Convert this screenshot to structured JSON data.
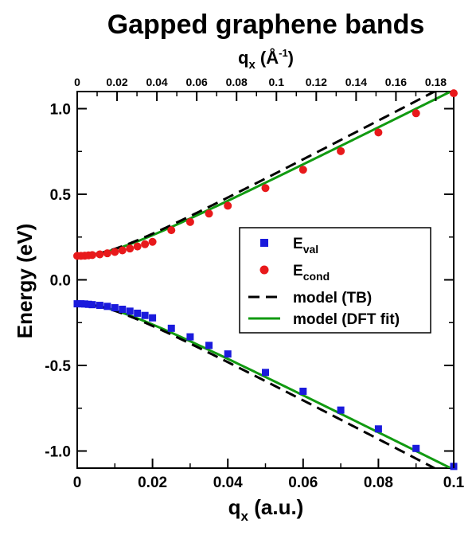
{
  "chart_data": {
    "type": "scatter",
    "title": "Gapped graphene bands",
    "xlabel": "q",
    "xlabel_sub": "x",
    "xlabel_unit": " (a.u.)",
    "x2label": "q",
    "x2label_sub": "x",
    "x2label_unit_pre": " (Å",
    "x2label_unit_sup": "-1",
    "x2label_unit_post": ")",
    "ylabel": "Energy (eV)",
    "xlim": [
      0,
      0.1
    ],
    "ylim": [
      -1.1,
      1.1
    ],
    "x2lim": [
      0,
      0.189
    ],
    "x_ticks": [
      {
        "value": 0,
        "label": "0"
      },
      {
        "value": 0.02,
        "label": "0.02"
      },
      {
        "value": 0.04,
        "label": "0.04"
      },
      {
        "value": 0.06,
        "label": "0.06"
      },
      {
        "value": 0.08,
        "label": "0.08"
      },
      {
        "value": 0.1,
        "label": "0.1"
      }
    ],
    "y_ticks": [
      {
        "value": -1.0,
        "label": "-1.0"
      },
      {
        "value": -0.5,
        "label": "-0.5"
      },
      {
        "value": 0.0,
        "label": "0.0"
      },
      {
        "value": 0.5,
        "label": "0.5"
      },
      {
        "value": 1.0,
        "label": "1.0"
      }
    ],
    "x2_ticks": [
      {
        "value": 0,
        "label": "0"
      },
      {
        "value": 0.02,
        "label": "0.02"
      },
      {
        "value": 0.04,
        "label": "0.04"
      },
      {
        "value": 0.06,
        "label": "0.06"
      },
      {
        "value": 0.08,
        "label": "0.08"
      },
      {
        "value": 0.1,
        "label": "0.1"
      },
      {
        "value": 0.12,
        "label": "0.12"
      },
      {
        "value": 0.14,
        "label": "0.14"
      },
      {
        "value": 0.16,
        "label": "0.16"
      },
      {
        "value": 0.18,
        "label": "0.18"
      }
    ],
    "legend_position": "right-middle",
    "grid": false,
    "series": [
      {
        "name": "E",
        "name_sub": "val",
        "kind": "markers",
        "marker": "square",
        "color": "#1a1adc",
        "x": [
          0,
          0.001,
          0.002,
          0.003,
          0.004,
          0.006,
          0.008,
          0.01,
          0.012,
          0.014,
          0.016,
          0.018,
          0.02,
          0.025,
          0.03,
          0.035,
          0.04,
          0.05,
          0.06,
          0.07,
          0.08,
          0.09,
          0.1
        ],
        "y": [
          -0.14,
          -0.14,
          -0.141,
          -0.143,
          -0.145,
          -0.149,
          -0.155,
          -0.163,
          -0.172,
          -0.183,
          -0.195,
          -0.208,
          -0.222,
          -0.283,
          -0.333,
          -0.383,
          -0.433,
          -0.541,
          -0.651,
          -0.761,
          -0.871,
          -0.985,
          -1.09
        ]
      },
      {
        "name": "E",
        "name_sub": "cond",
        "kind": "markers",
        "marker": "circle",
        "color": "#e8191b",
        "x": [
          0,
          0.001,
          0.002,
          0.003,
          0.004,
          0.006,
          0.008,
          0.01,
          0.012,
          0.014,
          0.016,
          0.018,
          0.02,
          0.025,
          0.03,
          0.035,
          0.04,
          0.05,
          0.06,
          0.07,
          0.08,
          0.09,
          0.1
        ],
        "y": [
          0.14,
          0.14,
          0.141,
          0.143,
          0.145,
          0.149,
          0.155,
          0.163,
          0.172,
          0.183,
          0.195,
          0.208,
          0.222,
          0.29,
          0.338,
          0.387,
          0.433,
          0.536,
          0.643,
          0.752,
          0.861,
          0.973,
          1.09
        ]
      },
      {
        "name": "model (TB)",
        "kind": "line",
        "dash": true,
        "color": "#000000",
        "gap": 0.14,
        "slope_tb": 11.5
      },
      {
        "name": "model (DFT fit)",
        "kind": "line",
        "dash": false,
        "color": "#119a11",
        "gap": 0.14,
        "slope_dft": 11.0
      }
    ],
    "legend": [
      {
        "label": "E",
        "sub": "val",
        "kind": "square",
        "color": "#1a1adc"
      },
      {
        "label": "E",
        "sub": "cond",
        "kind": "circle",
        "color": "#e8191b"
      },
      {
        "label": "model (TB)",
        "sub": "",
        "kind": "dash",
        "color": "#000000"
      },
      {
        "label": "model (DFT fit)",
        "sub": "",
        "kind": "line",
        "color": "#119a11"
      }
    ]
  }
}
